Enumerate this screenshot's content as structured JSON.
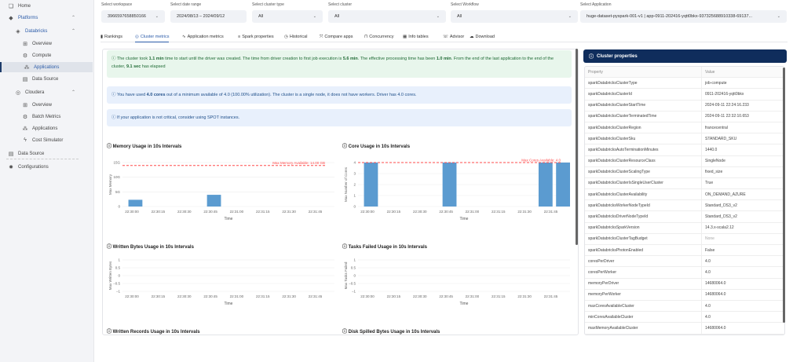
{
  "sidebar": {
    "items": [
      {
        "label": "Home",
        "icon": "home-icon",
        "indent": 0
      },
      {
        "label": "Platforms",
        "icon": "cube-icon",
        "indent": 0,
        "blue": true,
        "chevron": "^"
      },
      {
        "label": "Databricks",
        "icon": "databricks-icon",
        "indent": 1,
        "blue": true,
        "chevron": "^"
      },
      {
        "label": "Overview",
        "icon": "grid-icon",
        "indent": 2
      },
      {
        "label": "Compute",
        "icon": "gear-icon",
        "indent": 2
      },
      {
        "label": "Applications",
        "icon": "apps-icon",
        "indent": 2,
        "active": true,
        "blue": true
      },
      {
        "label": "Data Source",
        "icon": "database-icon",
        "indent": 2
      },
      {
        "label": "Cloudera",
        "icon": "cloudera-icon",
        "indent": 1,
        "chevron": "^"
      },
      {
        "label": "Overview",
        "icon": "grid-icon",
        "indent": 2
      },
      {
        "label": "Batch Metrics",
        "icon": "gear-icon",
        "indent": 2
      },
      {
        "label": "Applications",
        "icon": "apps-icon",
        "indent": 2
      },
      {
        "label": "Cost Simulator",
        "icon": "lightning-icon",
        "indent": 2
      },
      {
        "label": "Data Source",
        "icon": "database-icon",
        "indent": 0
      },
      {
        "label": "Configurations",
        "icon": "settings-icon",
        "indent": 0
      }
    ]
  },
  "filters": [
    {
      "label": "Select workspace",
      "value": "3966597658850166"
    },
    {
      "label": "Select date range",
      "value": "2024/08/13 – 2024/09/12"
    },
    {
      "label": "Select cluster type",
      "value": "All"
    },
    {
      "label": "Select cluster",
      "value": "All"
    },
    {
      "label": "Select Workflow",
      "value": "All"
    },
    {
      "label": "Select Application",
      "value": "huge-dataset-pyspark-001-v1 | app-0911-202416-yqtt0bkx-937325688910338-69137..."
    }
  ],
  "tabs": [
    {
      "label": "Rankings",
      "icon": "bar-chart-icon"
    },
    {
      "label": "Cluster metrics",
      "icon": "gauge-icon",
      "active": true
    },
    {
      "label": "Application metrics",
      "icon": "pulse-icon"
    },
    {
      "label": "Spark properties",
      "icon": "list-icon"
    },
    {
      "label": "Historical",
      "icon": "clock-icon"
    },
    {
      "label": "Compare apps",
      "icon": "compare-icon"
    },
    {
      "label": "Concurrency",
      "icon": "concurrency-icon"
    },
    {
      "label": "Info tables",
      "icon": "table-icon"
    },
    {
      "label": "Advisor",
      "icon": "advisor-icon"
    },
    {
      "label": "Download",
      "icon": "cloud-download-icon"
    }
  ],
  "alerts": {
    "startup": [
      "The cluster took ",
      "1.1 min",
      " time to start until the driver was created. The time from driver creation to first job execution is ",
      "5.6 min",
      ". The effective processing time has been ",
      "1.0 min",
      ". From the end of the last application to the end of the cluster, ",
      "9.1 sec",
      " has elapsed"
    ],
    "cores": [
      "You have used ",
      "4.0 cores",
      " out of a minimum available of 4.0 (100.00% utilization). The cluster is a single node, it does not have workers. Driver has 4.0 cores."
    ],
    "spot": "If your application is not critical, consider using SPOT instances."
  },
  "chart_data": [
    {
      "id": "memory",
      "type": "bar",
      "title": "Memory Usage in 10s Intervals",
      "xlabel": "Time",
      "ylabel": "Max Memory",
      "x_ticks": [
        "22:30:00",
        "22:30:15",
        "22:30:30",
        "22:30:45",
        "22:31:00",
        "22:31:15",
        "22:31:30",
        "22:31:45"
      ],
      "y_ticks": [
        "0",
        "5G",
        "10G",
        "15G"
      ],
      "ylim": [
        0,
        15
      ],
      "bars": [
        {
          "x": "22:30:00",
          "value": 2.3
        },
        {
          "x": "22:30:45",
          "value": 4.0
        }
      ],
      "threshold": {
        "value": 14.0,
        "label": "Max Memory Available: 14.00 GB"
      }
    },
    {
      "id": "cores",
      "type": "bar",
      "title": "Core Usage in 10s Intervals",
      "xlabel": "Time",
      "ylabel": "Max Number of Cores",
      "x_ticks": [
        "22:30:00",
        "22:30:15",
        "22:30:30",
        "22:30:45",
        "22:31:00",
        "22:31:15",
        "22:31:30",
        "22:31:45"
      ],
      "y_ticks": [
        "0",
        "1",
        "2",
        "3",
        "4"
      ],
      "ylim": [
        0,
        4
      ],
      "bars": [
        {
          "x": "22:30:00",
          "value": 4
        },
        {
          "x": "22:30:45",
          "value": 4
        },
        {
          "x": "22:31:40",
          "value": 4
        },
        {
          "x": "22:31:50",
          "value": 4
        }
      ],
      "threshold": {
        "value": 4.0,
        "label": "Max Cores Available: 4.0"
      }
    },
    {
      "id": "written-bytes",
      "type": "bar",
      "title": "Written Bytes Usage in 10s Intervals",
      "xlabel": "Time",
      "ylabel": "Max Written Bytes",
      "x_ticks": [
        "22:30:00",
        "22:30:15",
        "22:30:30",
        "22:30:45",
        "22:31:00",
        "22:31:15",
        "22:31:30",
        "22:31:45"
      ],
      "y_ticks": [
        "−1",
        "−0.5",
        "0",
        "0.5",
        "1"
      ],
      "ylim": [
        -1,
        1
      ],
      "bars": []
    },
    {
      "id": "tasks-failed",
      "type": "bar",
      "title": "Tasks Failed Usage in 10s Intervals",
      "xlabel": "Time",
      "ylabel": "Max Tasks Failed",
      "x_ticks": [
        "22:30:00",
        "22:30:15",
        "22:30:30",
        "22:30:45",
        "22:31:00",
        "22:31:15",
        "22:31:30",
        "22:31:45"
      ],
      "y_ticks": [
        "−1",
        "−0.5",
        "0",
        "0.5",
        "1"
      ],
      "ylim": [
        -1,
        1
      ],
      "bars": []
    },
    {
      "id": "written-records",
      "type": "bar",
      "title": "Written Records Usage in 10s Intervals",
      "bars": []
    },
    {
      "id": "disk-spilled",
      "type": "bar",
      "title": "Disk Spilled Bytes Usage in 10s Intervals",
      "bars": []
    }
  ],
  "properties": {
    "title": "Cluster properties",
    "columns": [
      "Property",
      "Value"
    ],
    "rows": [
      [
        "sparkDatabricksClusterType",
        "job-compute"
      ],
      [
        "sparkDatabricksClusterId",
        "0911-202416-yqtt0bkx"
      ],
      [
        "sparkDatabricksClusterStartTime",
        "2024-09-11 22:24:16.233"
      ],
      [
        "sparkDatabricksClusterTerminatedTime",
        "2024-09-11 22:32:10.653"
      ],
      [
        "sparkDatabricksClusterRegion",
        "francecentral"
      ],
      [
        "sparkDatabricksClusterSku",
        "STANDARD_SKU"
      ],
      [
        "sparkDatabricksAutoTerminationMinutes",
        "1440.0"
      ],
      [
        "sparkDatabricksClusterResourceClass",
        "SingleNode"
      ],
      [
        "sparkDatabricksClusterScalingType",
        "fixed_size"
      ],
      [
        "sparkDatabricksClusterIsSingleUserCluster",
        "True"
      ],
      [
        "sparkDatabricksClusterAvailability",
        "ON_DEMAND_AZURE"
      ],
      [
        "sparkDatabricksWorkerNodeTypeId",
        "Standard_DS3_v2"
      ],
      [
        "sparkDatabricksDriverNodeTypeId",
        "Standard_DS3_v2"
      ],
      [
        "sparkDatabricksSparkVersion",
        "14.3.x-scala2.12"
      ],
      [
        "sparkDatabricksClusterTagBudget",
        "None"
      ],
      [
        "sparkDatabricksPhotonEnabled",
        "False"
      ],
      [
        "coresPerDriver",
        "4.0"
      ],
      [
        "coresPerWorker",
        "4.0"
      ],
      [
        "memoryPerDriver",
        "14680064.0"
      ],
      [
        "memoryPerWorker",
        "14680064.0"
      ],
      [
        "maxCoresAvailableCluster",
        "4.0"
      ],
      [
        "minCoresAvailableCluster",
        "4.0"
      ],
      [
        "maxMemoryAvailableCluster",
        "14680064.0"
      ]
    ]
  },
  "colors": {
    "bar": "#5b9bd0",
    "threshold": "#ff4b4b",
    "navy": "#0f2d5c",
    "accent": "#2b5ba8"
  }
}
